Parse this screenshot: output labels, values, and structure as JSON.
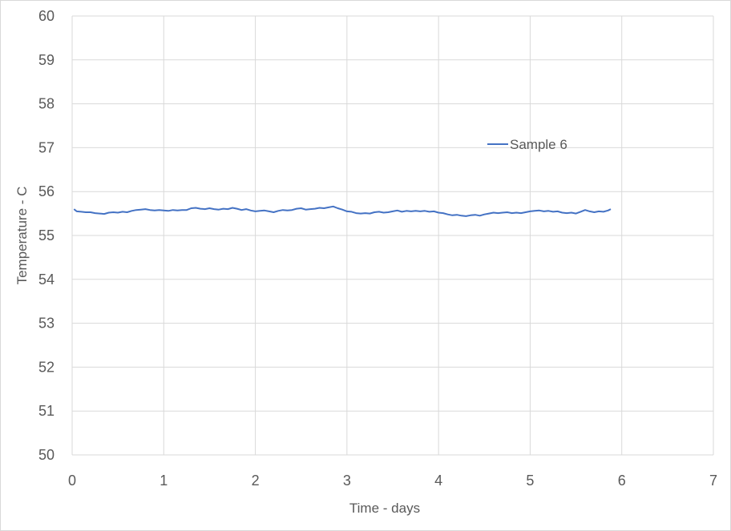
{
  "chart_data": {
    "type": "line",
    "title": "",
    "xlabel": "Time - days",
    "ylabel": "Temperature - C",
    "xlim": [
      0,
      7
    ],
    "ylim": [
      50,
      60
    ],
    "xticks": [
      "0",
      "1",
      "2",
      "3",
      "4",
      "5",
      "6",
      "7"
    ],
    "yticks": [
      "50",
      "51",
      "52",
      "53",
      "54",
      "55",
      "56",
      "57",
      "58",
      "59",
      "60"
    ],
    "grid": true,
    "legend_position": "upper-right",
    "colors": {
      "series": "#4472c4",
      "grid": "#d9d9d9",
      "text": "#595959"
    },
    "series": [
      {
        "name": "Sample 6",
        "x": [
          0.02,
          0.05,
          0.1,
          0.15,
          0.2,
          0.25,
          0.3,
          0.35,
          0.4,
          0.45,
          0.5,
          0.55,
          0.6,
          0.65,
          0.7,
          0.75,
          0.8,
          0.85,
          0.9,
          0.95,
          1.0,
          1.05,
          1.1,
          1.15,
          1.2,
          1.25,
          1.3,
          1.35,
          1.4,
          1.45,
          1.5,
          1.55,
          1.6,
          1.65,
          1.7,
          1.75,
          1.8,
          1.85,
          1.9,
          1.95,
          2.0,
          2.05,
          2.1,
          2.15,
          2.2,
          2.25,
          2.3,
          2.35,
          2.4,
          2.45,
          2.5,
          2.55,
          2.6,
          2.65,
          2.7,
          2.75,
          2.8,
          2.85,
          2.9,
          2.95,
          3.0,
          3.05,
          3.1,
          3.15,
          3.2,
          3.25,
          3.3,
          3.35,
          3.4,
          3.45,
          3.5,
          3.55,
          3.6,
          3.65,
          3.7,
          3.75,
          3.8,
          3.85,
          3.9,
          3.95,
          4.0,
          4.05,
          4.1,
          4.15,
          4.2,
          4.25,
          4.3,
          4.35,
          4.4,
          4.45,
          4.5,
          4.55,
          4.6,
          4.65,
          4.7,
          4.75,
          4.8,
          4.85,
          4.9,
          4.95,
          5.0,
          5.05,
          5.1,
          5.15,
          5.2,
          5.25,
          5.3,
          5.35,
          5.4,
          5.45,
          5.5,
          5.55,
          5.6,
          5.65,
          5.7,
          5.75,
          5.8,
          5.85,
          5.88
        ],
        "y": [
          55.6,
          55.55,
          55.54,
          55.53,
          55.53,
          55.51,
          55.5,
          55.49,
          55.52,
          55.53,
          55.52,
          55.54,
          55.53,
          55.56,
          55.58,
          55.59,
          55.6,
          55.58,
          55.57,
          55.58,
          55.57,
          55.56,
          55.58,
          55.57,
          55.58,
          55.58,
          55.62,
          55.63,
          55.61,
          55.6,
          55.62,
          55.6,
          55.59,
          55.61,
          55.6,
          55.63,
          55.61,
          55.58,
          55.6,
          55.57,
          55.55,
          55.56,
          55.57,
          55.55,
          55.53,
          55.56,
          55.58,
          55.57,
          55.58,
          55.61,
          55.62,
          55.59,
          55.6,
          55.61,
          55.63,
          55.62,
          55.64,
          55.66,
          55.62,
          55.59,
          55.55,
          55.54,
          55.51,
          55.5,
          55.51,
          55.5,
          55.53,
          55.54,
          55.52,
          55.53,
          55.55,
          55.57,
          55.54,
          55.56,
          55.55,
          55.56,
          55.55,
          55.56,
          55.54,
          55.55,
          55.52,
          55.51,
          55.48,
          55.46,
          55.47,
          55.45,
          55.44,
          55.46,
          55.47,
          55.45,
          55.48,
          55.5,
          55.52,
          55.51,
          55.52,
          55.53,
          55.51,
          55.52,
          55.51,
          55.53,
          55.55,
          55.56,
          55.57,
          55.55,
          55.56,
          55.54,
          55.55,
          55.52,
          55.51,
          55.52,
          55.5,
          55.54,
          55.58,
          55.55,
          55.53,
          55.55,
          55.54,
          55.57,
          55.6
        ]
      }
    ]
  }
}
